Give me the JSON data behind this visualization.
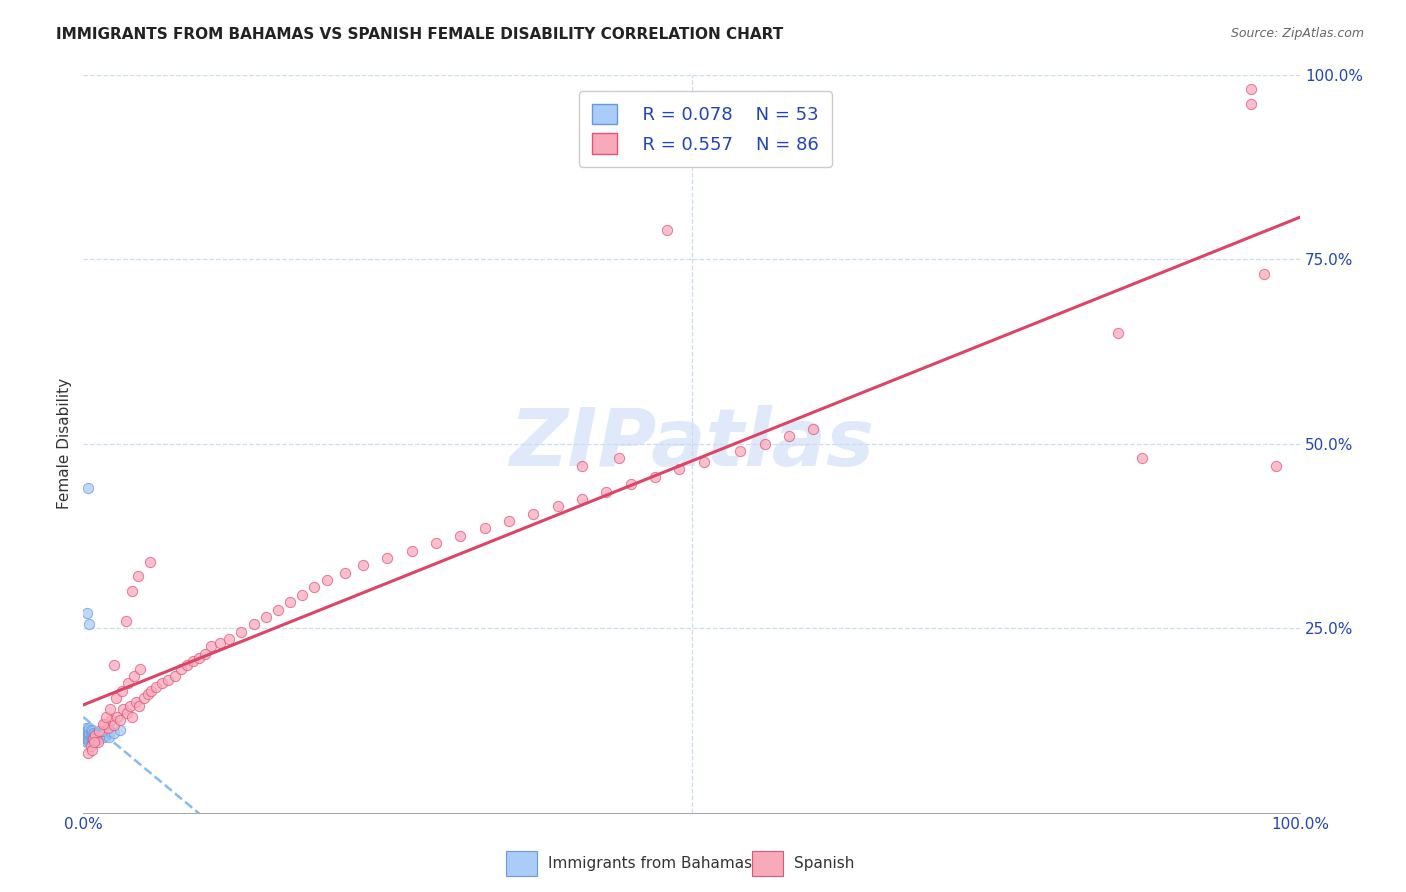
{
  "title": "IMMIGRANTS FROM BAHAMAS VS SPANISH FEMALE DISABILITY CORRELATION CHART",
  "source": "Source: ZipAtlas.com",
  "ylabel": "Female Disability",
  "xlim": [
    0.0,
    1.0
  ],
  "ylim": [
    0.0,
    1.0
  ],
  "legend_R1": "R = 0.078",
  "legend_N1": "N = 53",
  "legend_R2": "R = 0.557",
  "legend_N2": "N = 86",
  "legend_label1": "Immigrants from Bahamas",
  "legend_label2": "Spanish",
  "color_blue_fill": "#aaccf8",
  "color_pink_fill": "#f8aabb",
  "color_blue_edge": "#6699dd",
  "color_pink_edge": "#dd5577",
  "color_blue_line": "#88bbee",
  "color_pink_line": "#dd4466",
  "color_legend_text": "#2244bb",
  "watermark": "ZIPatlas",
  "grid_color": "#ccddee",
  "bahamas_x": [
    0.001,
    0.002,
    0.002,
    0.002,
    0.003,
    0.003,
    0.003,
    0.003,
    0.004,
    0.004,
    0.004,
    0.004,
    0.005,
    0.005,
    0.005,
    0.005,
    0.005,
    0.006,
    0.006,
    0.006,
    0.006,
    0.007,
    0.007,
    0.007,
    0.007,
    0.008,
    0.008,
    0.008,
    0.009,
    0.009,
    0.009,
    0.01,
    0.01,
    0.011,
    0.011,
    0.012,
    0.012,
    0.013,
    0.013,
    0.014,
    0.015,
    0.016,
    0.017,
    0.018,
    0.019,
    0.02,
    0.021,
    0.022,
    0.025,
    0.03,
    0.003,
    0.004,
    0.005
  ],
  "bahamas_y": [
    0.105,
    0.1,
    0.11,
    0.115,
    0.095,
    0.1,
    0.105,
    0.11,
    0.098,
    0.102,
    0.108,
    0.112,
    0.095,
    0.1,
    0.105,
    0.108,
    0.115,
    0.098,
    0.102,
    0.106,
    0.112,
    0.095,
    0.1,
    0.105,
    0.11,
    0.098,
    0.103,
    0.108,
    0.097,
    0.102,
    0.108,
    0.098,
    0.105,
    0.1,
    0.108,
    0.102,
    0.107,
    0.1,
    0.108,
    0.105,
    0.102,
    0.108,
    0.103,
    0.11,
    0.105,
    0.108,
    0.103,
    0.11,
    0.108,
    0.112,
    0.27,
    0.44,
    0.255
  ],
  "spanish_x": [
    0.004,
    0.006,
    0.008,
    0.01,
    0.012,
    0.015,
    0.018,
    0.02,
    0.023,
    0.025,
    0.028,
    0.03,
    0.033,
    0.036,
    0.038,
    0.04,
    0.043,
    0.046,
    0.05,
    0.053,
    0.056,
    0.06,
    0.065,
    0.07,
    0.075,
    0.08,
    0.085,
    0.09,
    0.095,
    0.1,
    0.105,
    0.112,
    0.12,
    0.13,
    0.14,
    0.15,
    0.16,
    0.17,
    0.18,
    0.19,
    0.2,
    0.215,
    0.23,
    0.25,
    0.27,
    0.29,
    0.31,
    0.33,
    0.35,
    0.37,
    0.39,
    0.41,
    0.43,
    0.45,
    0.47,
    0.49,
    0.51,
    0.54,
    0.56,
    0.58,
    0.6,
    0.04,
    0.055,
    0.025,
    0.035,
    0.045,
    0.007,
    0.009,
    0.013,
    0.016,
    0.019,
    0.022,
    0.027,
    0.032,
    0.037,
    0.042,
    0.047,
    0.41,
    0.85,
    0.87,
    0.96,
    0.97,
    0.96,
    0.98,
    0.44,
    0.48
  ],
  "spanish_y": [
    0.08,
    0.09,
    0.1,
    0.105,
    0.095,
    0.11,
    0.12,
    0.115,
    0.125,
    0.118,
    0.13,
    0.125,
    0.14,
    0.135,
    0.145,
    0.13,
    0.15,
    0.145,
    0.155,
    0.16,
    0.165,
    0.17,
    0.175,
    0.18,
    0.185,
    0.195,
    0.2,
    0.205,
    0.21,
    0.215,
    0.225,
    0.23,
    0.235,
    0.245,
    0.255,
    0.265,
    0.275,
    0.285,
    0.295,
    0.305,
    0.315,
    0.325,
    0.335,
    0.345,
    0.355,
    0.365,
    0.375,
    0.385,
    0.395,
    0.405,
    0.415,
    0.425,
    0.435,
    0.445,
    0.455,
    0.465,
    0.475,
    0.49,
    0.5,
    0.51,
    0.52,
    0.3,
    0.34,
    0.2,
    0.26,
    0.32,
    0.085,
    0.095,
    0.11,
    0.12,
    0.13,
    0.14,
    0.155,
    0.165,
    0.175,
    0.185,
    0.195,
    0.47,
    0.65,
    0.48,
    0.96,
    0.73,
    0.98,
    0.47,
    0.48,
    0.79
  ]
}
